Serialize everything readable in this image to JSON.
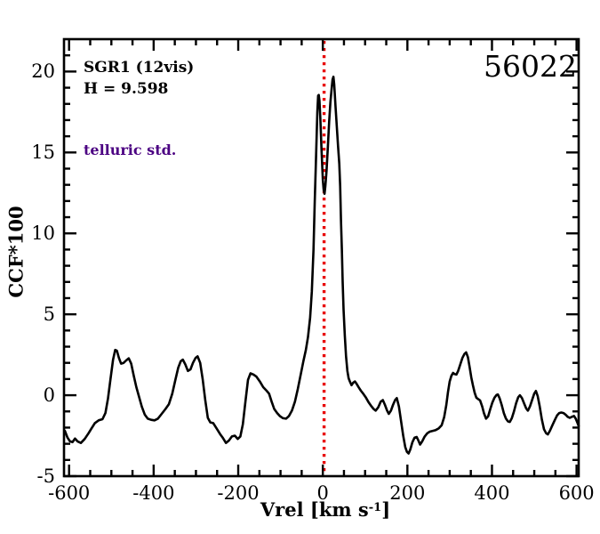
{
  "figure": {
    "annotations": {
      "target": "SGR1 (12vis)",
      "magnitude": "H = 9.598",
      "note": "telluric std.",
      "note_color": "#4B0082",
      "frame_id": "56022"
    }
  },
  "chart_data": {
    "type": "line",
    "title": "",
    "xlabel_pre": "Vrel [km s",
    "xlabel_sup": "-1",
    "xlabel_post": "]",
    "ylabel": "CCF*100",
    "xlim": [
      -612,
      605
    ],
    "ylim": [
      -5,
      22
    ],
    "x_major_ticks": [
      -600,
      -400,
      -200,
      0,
      200,
      400,
      600
    ],
    "x_tick_labels": [
      "-600",
      "-400",
      "-200",
      "0",
      "200",
      "400",
      "600"
    ],
    "x_minor_step": 50,
    "y_major_ticks": [
      -5,
      0,
      5,
      10,
      15,
      20
    ],
    "y_tick_labels": [
      "-5",
      "0",
      "5",
      "10",
      "15",
      "20"
    ],
    "y_minor_step": 1,
    "grid": false,
    "legend": "none",
    "reference_line": {
      "x": 3,
      "color": "#e80000",
      "style": "dotted"
    },
    "series": [
      {
        "name": "CCF",
        "color": "#000000",
        "points": [
          [
            -610,
            -2.2
          ],
          [
            -604,
            -2.6
          ],
          [
            -598,
            -2.85
          ],
          [
            -592,
            -2.9
          ],
          [
            -586,
            -2.68
          ],
          [
            -580,
            -2.85
          ],
          [
            -572,
            -2.95
          ],
          [
            -563,
            -2.7
          ],
          [
            -554,
            -2.35
          ],
          [
            -547,
            -2.05
          ],
          [
            -539,
            -1.72
          ],
          [
            -530,
            -1.55
          ],
          [
            -521,
            -1.48
          ],
          [
            -514,
            -1.1
          ],
          [
            -508,
            -0.2
          ],
          [
            -502,
            1.0
          ],
          [
            -496,
            2.2
          ],
          [
            -491,
            2.8
          ],
          [
            -487,
            2.75
          ],
          [
            -482,
            2.3
          ],
          [
            -477,
            1.95
          ],
          [
            -471,
            2.0
          ],
          [
            -465,
            2.15
          ],
          [
            -459,
            2.28
          ],
          [
            -453,
            1.95
          ],
          [
            -447,
            1.2
          ],
          [
            -441,
            0.5
          ],
          [
            -435,
            -0.05
          ],
          [
            -428,
            -0.7
          ],
          [
            -421,
            -1.2
          ],
          [
            -414,
            -1.45
          ],
          [
            -406,
            -1.52
          ],
          [
            -398,
            -1.55
          ],
          [
            -390,
            -1.45
          ],
          [
            -381,
            -1.15
          ],
          [
            -372,
            -0.85
          ],
          [
            -364,
            -0.55
          ],
          [
            -356,
            0.1
          ],
          [
            -349,
            0.9
          ],
          [
            -342,
            1.7
          ],
          [
            -336,
            2.1
          ],
          [
            -331,
            2.2
          ],
          [
            -325,
            1.9
          ],
          [
            -319,
            1.5
          ],
          [
            -313,
            1.6
          ],
          [
            -307,
            2.0
          ],
          [
            -301,
            2.3
          ],
          [
            -296,
            2.4
          ],
          [
            -290,
            2.0
          ],
          [
            -284,
            1.0
          ],
          [
            -278,
            -0.3
          ],
          [
            -272,
            -1.4
          ],
          [
            -266,
            -1.68
          ],
          [
            -259,
            -1.72
          ],
          [
            -251,
            -2.05
          ],
          [
            -243,
            -2.4
          ],
          [
            -236,
            -2.65
          ],
          [
            -229,
            -2.95
          ],
          [
            -222,
            -2.8
          ],
          [
            -215,
            -2.55
          ],
          [
            -208,
            -2.5
          ],
          [
            -201,
            -2.7
          ],
          [
            -195,
            -2.55
          ],
          [
            -189,
            -1.8
          ],
          [
            -183,
            -0.4
          ],
          [
            -177,
            0.95
          ],
          [
            -171,
            1.35
          ],
          [
            -164,
            1.28
          ],
          [
            -157,
            1.15
          ],
          [
            -149,
            0.85
          ],
          [
            -141,
            0.5
          ],
          [
            -133,
            0.28
          ],
          [
            -127,
            0.1
          ],
          [
            -121,
            -0.4
          ],
          [
            -115,
            -0.85
          ],
          [
            -108,
            -1.1
          ],
          [
            -101,
            -1.3
          ],
          [
            -94,
            -1.42
          ],
          [
            -87,
            -1.45
          ],
          [
            -80,
            -1.28
          ],
          [
            -73,
            -0.95
          ],
          [
            -66,
            -0.4
          ],
          [
            -59,
            0.4
          ],
          [
            -52,
            1.3
          ],
          [
            -46,
            2.1
          ],
          [
            -40,
            2.8
          ],
          [
            -35,
            3.6
          ],
          [
            -30,
            4.8
          ],
          [
            -26,
            6.4
          ],
          [
            -22,
            9.0
          ],
          [
            -19,
            12.0
          ],
          [
            -16,
            14.8
          ],
          [
            -13,
            17.5
          ],
          [
            -11,
            18.5
          ],
          [
            -9.5,
            18.55
          ],
          [
            -8,
            18.2
          ],
          [
            -6,
            17.2
          ],
          [
            -3,
            15.2
          ],
          [
            0,
            13.3
          ],
          [
            2,
            12.7
          ],
          [
            4,
            12.45
          ],
          [
            6,
            12.9
          ],
          [
            9,
            13.9
          ],
          [
            12,
            15.4
          ],
          [
            15,
            16.9
          ],
          [
            18,
            18.1
          ],
          [
            21,
            19.0
          ],
          [
            23,
            19.5
          ],
          [
            25,
            19.68
          ],
          [
            27,
            19.2
          ],
          [
            30,
            17.9
          ],
          [
            33,
            16.6
          ],
          [
            36,
            15.4
          ],
          [
            39,
            14.3
          ],
          [
            41,
            12.9
          ],
          [
            43,
            10.8
          ],
          [
            45,
            9.0
          ],
          [
            47,
            7.0
          ],
          [
            49,
            5.3
          ],
          [
            52,
            3.7
          ],
          [
            55,
            2.4
          ],
          [
            58,
            1.5
          ],
          [
            61,
            1.05
          ],
          [
            64,
            0.85
          ],
          [
            68,
            0.62
          ],
          [
            72,
            0.78
          ],
          [
            76,
            0.85
          ],
          [
            80,
            0.7
          ],
          [
            85,
            0.48
          ],
          [
            90,
            0.28
          ],
          [
            96,
            0.08
          ],
          [
            102,
            -0.15
          ],
          [
            108,
            -0.42
          ],
          [
            114,
            -0.65
          ],
          [
            120,
            -0.85
          ],
          [
            125,
            -0.95
          ],
          [
            131,
            -0.75
          ],
          [
            137,
            -0.4
          ],
          [
            142,
            -0.3
          ],
          [
            147,
            -0.6
          ],
          [
            152,
            -0.95
          ],
          [
            156,
            -1.15
          ],
          [
            161,
            -0.95
          ],
          [
            166,
            -0.6
          ],
          [
            171,
            -0.3
          ],
          [
            175,
            -0.18
          ],
          [
            180,
            -0.7
          ],
          [
            185,
            -1.6
          ],
          [
            190,
            -2.5
          ],
          [
            195,
            -3.2
          ],
          [
            199,
            -3.5
          ],
          [
            203,
            -3.6
          ],
          [
            207,
            -3.35
          ],
          [
            212,
            -2.9
          ],
          [
            217,
            -2.62
          ],
          [
            222,
            -2.58
          ],
          [
            226,
            -2.8
          ],
          [
            230,
            -3.05
          ],
          [
            235,
            -2.85
          ],
          [
            241,
            -2.55
          ],
          [
            247,
            -2.35
          ],
          [
            253,
            -2.25
          ],
          [
            260,
            -2.2
          ],
          [
            267,
            -2.15
          ],
          [
            274,
            -2.05
          ],
          [
            281,
            -1.85
          ],
          [
            287,
            -1.35
          ],
          [
            292,
            -0.6
          ],
          [
            296,
            0.2
          ],
          [
            300,
            0.85
          ],
          [
            304,
            1.2
          ],
          [
            308,
            1.38
          ],
          [
            312,
            1.3
          ],
          [
            316,
            1.28
          ],
          [
            320,
            1.5
          ],
          [
            325,
            1.9
          ],
          [
            330,
            2.3
          ],
          [
            335,
            2.55
          ],
          [
            339,
            2.65
          ],
          [
            343,
            2.35
          ],
          [
            347,
            1.75
          ],
          [
            351,
            1.1
          ],
          [
            355,
            0.6
          ],
          [
            359,
            0.15
          ],
          [
            363,
            -0.15
          ],
          [
            368,
            -0.25
          ],
          [
            372,
            -0.32
          ],
          [
            377,
            -0.7
          ],
          [
            381,
            -1.1
          ],
          [
            386,
            -1.45
          ],
          [
            391,
            -1.3
          ],
          [
            396,
            -0.85
          ],
          [
            401,
            -0.45
          ],
          [
            406,
            -0.15
          ],
          [
            411,
            0.02
          ],
          [
            414,
            0.05
          ],
          [
            418,
            -0.18
          ],
          [
            423,
            -0.6
          ],
          [
            428,
            -1.1
          ],
          [
            433,
            -1.45
          ],
          [
            438,
            -1.62
          ],
          [
            442,
            -1.65
          ],
          [
            447,
            -1.42
          ],
          [
            452,
            -1.0
          ],
          [
            457,
            -0.5
          ],
          [
            462,
            -0.12
          ],
          [
            466,
            0.0
          ],
          [
            471,
            -0.18
          ],
          [
            476,
            -0.5
          ],
          [
            481,
            -0.82
          ],
          [
            485,
            -0.95
          ],
          [
            490,
            -0.68
          ],
          [
            495,
            -0.28
          ],
          [
            500,
            0.1
          ],
          [
            504,
            0.26
          ],
          [
            508,
            -0.05
          ],
          [
            513,
            -0.7
          ],
          [
            518,
            -1.5
          ],
          [
            523,
            -2.1
          ],
          [
            528,
            -2.35
          ],
          [
            532,
            -2.42
          ],
          [
            537,
            -2.2
          ],
          [
            543,
            -1.85
          ],
          [
            549,
            -1.5
          ],
          [
            554,
            -1.25
          ],
          [
            559,
            -1.1
          ],
          [
            564,
            -1.07
          ],
          [
            569,
            -1.1
          ],
          [
            574,
            -1.2
          ],
          [
            579,
            -1.33
          ],
          [
            584,
            -1.4
          ],
          [
            589,
            -1.33
          ],
          [
            594,
            -1.28
          ],
          [
            598,
            -1.45
          ],
          [
            602,
            -1.7
          ],
          [
            605,
            -1.9
          ]
        ]
      }
    ]
  }
}
